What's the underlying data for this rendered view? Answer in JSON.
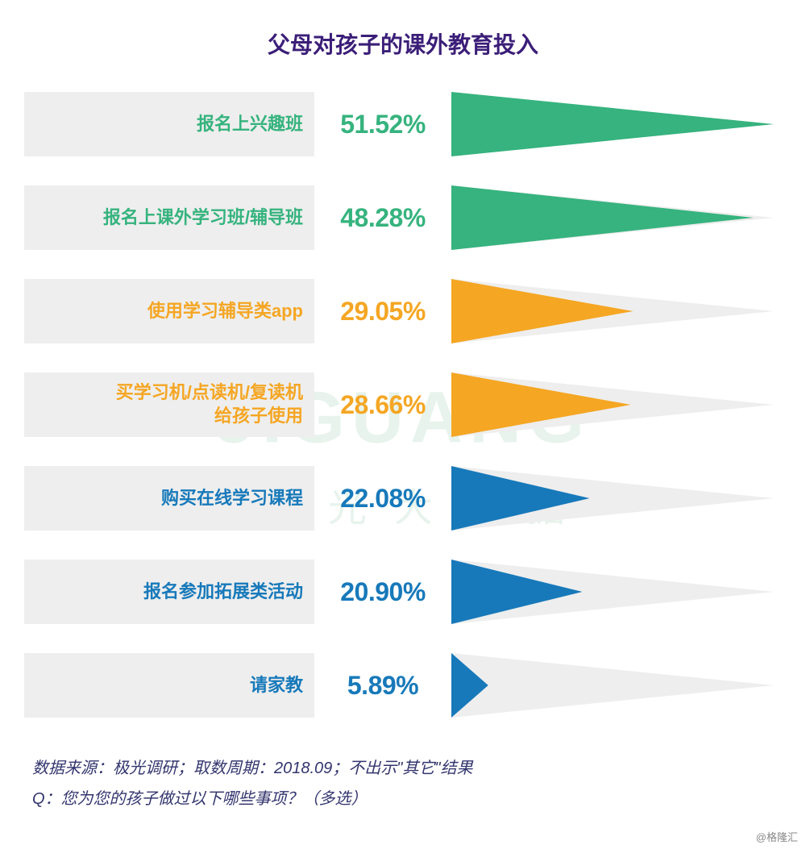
{
  "title": "父母对孩子的课外教育投入",
  "chart": {
    "type": "bar",
    "max_value": 51.52,
    "arrow_bg_width": 400,
    "arrow_height_full": 80,
    "arrow_height_half": 40,
    "label_bg": "#eeeeee",
    "arrow_bg_color": "#eeeeee",
    "rows": [
      {
        "label": "报名上兴趣班",
        "value": 51.52,
        "color": "#36b37e"
      },
      {
        "label": "报名上课外学习班/辅导班",
        "value": 48.28,
        "color": "#36b37e"
      },
      {
        "label": "使用学习辅导类app",
        "value": 29.05,
        "color": "#f5a623"
      },
      {
        "label": "买学习机/点读机/复读机\n给孩子使用",
        "value": 28.66,
        "color": "#f5a623"
      },
      {
        "label": "购买在线学习课程",
        "value": 22.08,
        "color": "#1779ba"
      },
      {
        "label": "报名参加拓展类活动",
        "value": 20.9,
        "color": "#1779ba"
      },
      {
        "label": "请家教",
        "value": 5.89,
        "color": "#1779ba"
      }
    ]
  },
  "footnote": {
    "line1": "数据来源：极光调研；取数周期：2018.09；不出示\"其它\"结果",
    "line2": "Q：您为您的孩子做过以下哪些事项？（多选）"
  },
  "watermark": {
    "main": "JIGUANG",
    "sub": "极光大数据",
    "color": "#3fa36a"
  },
  "credit": "@格隆汇"
}
